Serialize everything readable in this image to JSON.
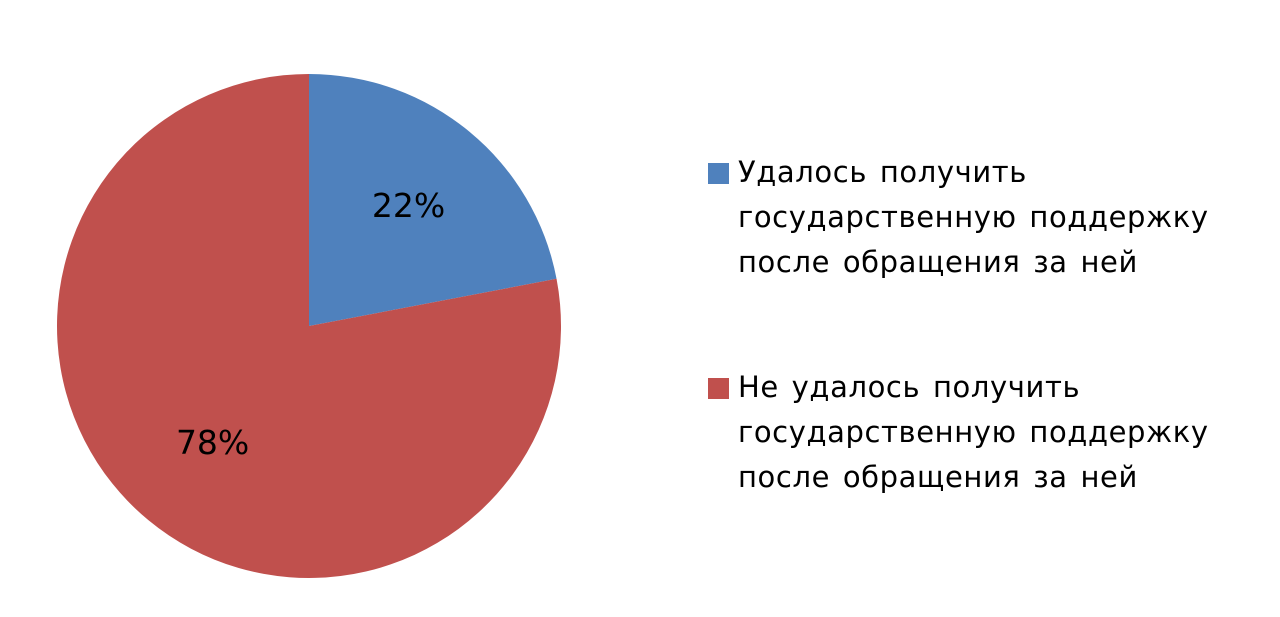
{
  "chart_data": {
    "type": "pie",
    "title": "",
    "categories": [
      "Удалось получить государственную поддержку после обращения за ней",
      "Не удалось получить государственную поддержку после обращения за ней"
    ],
    "values": [
      22,
      78
    ],
    "data_labels": [
      "22%",
      "78%"
    ],
    "colors": [
      "#4F81BD",
      "#C0504D"
    ],
    "legend_position": "right"
  }
}
